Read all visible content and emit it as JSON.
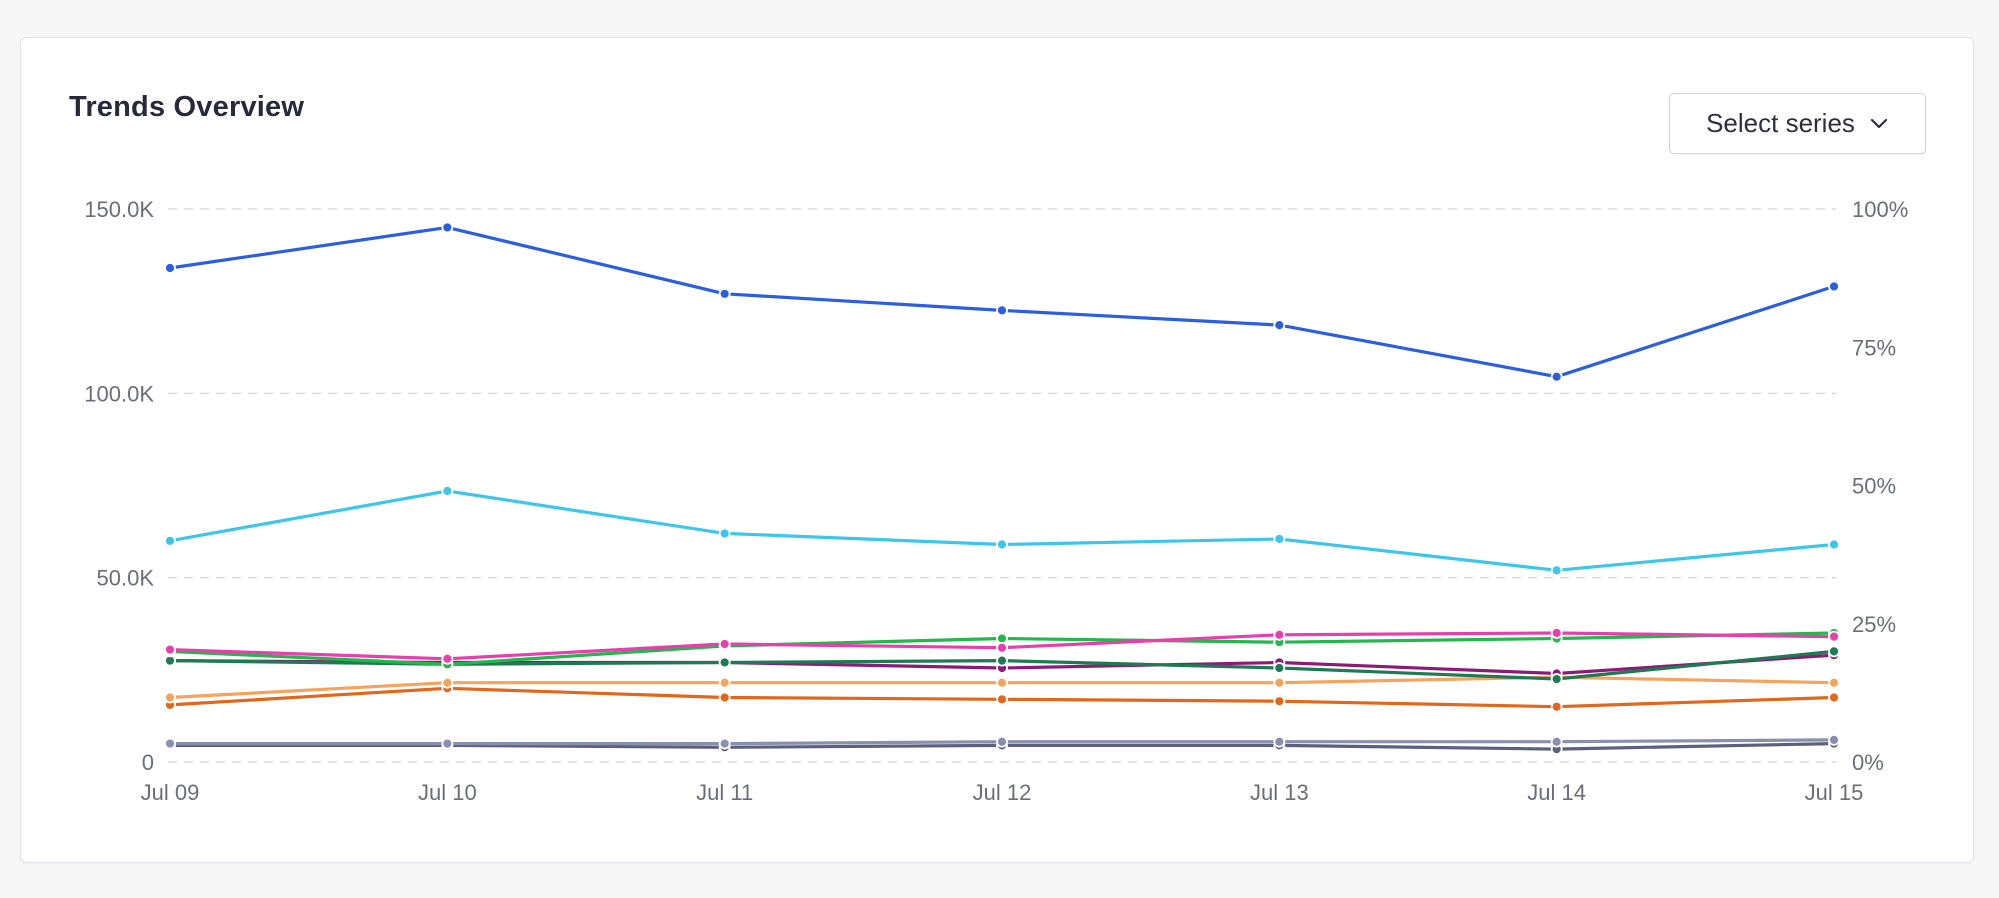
{
  "header": {
    "title": "Trends Overview",
    "select_label": "Select series"
  },
  "chart_data": {
    "type": "line",
    "categories": [
      "Jul 09",
      "Jul 10",
      "Jul 11",
      "Jul 12",
      "Jul 13",
      "Jul 14",
      "Jul 15"
    ],
    "ylim": [
      0,
      150000
    ],
    "yticks": [
      "0",
      "50.0K",
      "100.0K",
      "150.0K"
    ],
    "y2ticks": [
      "0%",
      "25%",
      "50%",
      "75%",
      "100%"
    ],
    "grid": true,
    "series": [
      {
        "color": "#2b5fe0",
        "values": [
          134000,
          145000,
          127000,
          122500,
          118500,
          104500,
          129000
        ]
      },
      {
        "color": "#3cc6ea",
        "values": [
          60000,
          73500,
          62000,
          59000,
          60500,
          52000,
          59000
        ]
      },
      {
        "color": "#e83fae",
        "values": [
          30500,
          28000,
          32000,
          31000,
          34500,
          35000,
          34000
        ]
      },
      {
        "color": "#22b84a",
        "values": [
          30000,
          26500,
          31500,
          33500,
          32500,
          33500,
          35000
        ]
      },
      {
        "color": "#1e7a52",
        "values": [
          27500,
          26500,
          27000,
          27500,
          25500,
          22500,
          30000
        ]
      },
      {
        "color": "#8e1a78",
        "values": [
          27500,
          27000,
          27000,
          25500,
          27000,
          24000,
          29000
        ]
      },
      {
        "color": "#f4a45c",
        "values": [
          17500,
          21500,
          21500,
          21500,
          21500,
          23000,
          21500
        ]
      },
      {
        "color": "#e3661a",
        "values": [
          15500,
          20000,
          17500,
          17000,
          16500,
          15000,
          17500
        ]
      },
      {
        "color": "#8a8fae",
        "values": [
          5000,
          5000,
          5000,
          5500,
          5500,
          5500,
          6000
        ]
      },
      {
        "color": "#5a607e",
        "values": [
          4500,
          4500,
          4000,
          4500,
          4500,
          3500,
          5000
        ]
      }
    ]
  }
}
